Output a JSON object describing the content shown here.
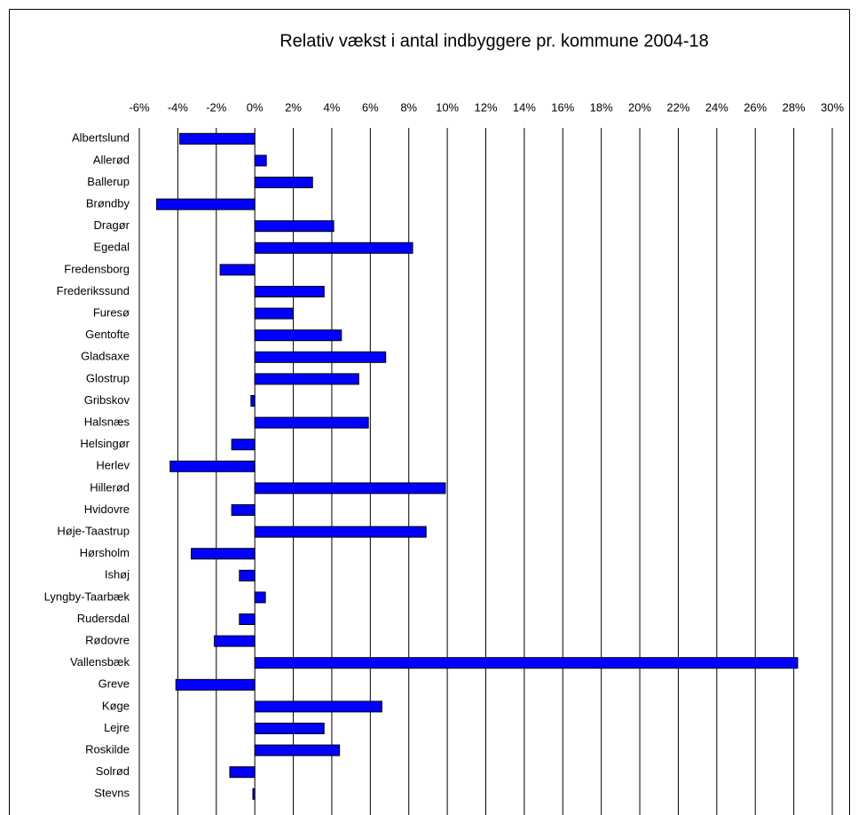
{
  "chart_data": {
    "type": "barh",
    "title": "Relativ vækst i antal indbyggere pr. kommune 2004-18",
    "categories": [
      "Albertslund",
      "Allerød",
      "Ballerup",
      "Brøndby",
      "Dragør",
      "Egedal",
      "Fredensborg",
      "Frederikssund",
      "Furesø",
      "Gentofte",
      "Gladsaxe",
      "Glostrup",
      "Gribskov",
      "Halsnæs",
      "Helsingør",
      "Herlev",
      "Hillerød",
      "Hvidovre",
      "Høje-Taastrup",
      "Hørsholm",
      "Ishøj",
      "Lyngby-Taarbæk",
      "Rudersdal",
      "Rødovre",
      "Vallensbæk",
      "Greve",
      "Køge",
      "Lejre",
      "Roskilde",
      "Solrød",
      "Stevns"
    ],
    "values": [
      -3.9,
      0.6,
      3.0,
      -5.1,
      4.1,
      8.2,
      -1.8,
      3.6,
      2.0,
      4.5,
      6.8,
      5.4,
      -0.2,
      5.9,
      -1.2,
      -4.4,
      9.9,
      -1.2,
      8.9,
      -3.3,
      -0.8,
      0.55,
      -0.8,
      -2.1,
      28.2,
      -4.1,
      6.6,
      3.6,
      4.4,
      -1.3,
      -0.1
    ],
    "color": "#0000ff",
    "xlim": [
      -6,
      30
    ],
    "xticks": [
      {
        "value": -6,
        "label": "-6%"
      },
      {
        "value": -4,
        "label": "-4%"
      },
      {
        "value": -2,
        "label": "-2%"
      },
      {
        "value": 0,
        "label": "0%"
      },
      {
        "value": 2,
        "label": "2%"
      },
      {
        "value": 4,
        "label": "4%"
      },
      {
        "value": 6,
        "label": "6%"
      },
      {
        "value": 8,
        "label": "8%"
      },
      {
        "value": 10,
        "label": "10%"
      },
      {
        "value": 12,
        "label": "12%"
      },
      {
        "value": 14,
        "label": "14%"
      },
      {
        "value": 16,
        "label": "16%"
      },
      {
        "value": 18,
        "label": "18%"
      },
      {
        "value": 20,
        "label": "20%"
      },
      {
        "value": 22,
        "label": "22%"
      },
      {
        "value": 24,
        "label": "24%"
      },
      {
        "value": 26,
        "label": "26%"
      },
      {
        "value": 28,
        "label": "28%"
      },
      {
        "value": 30,
        "label": "30%"
      }
    ],
    "grid": true
  }
}
